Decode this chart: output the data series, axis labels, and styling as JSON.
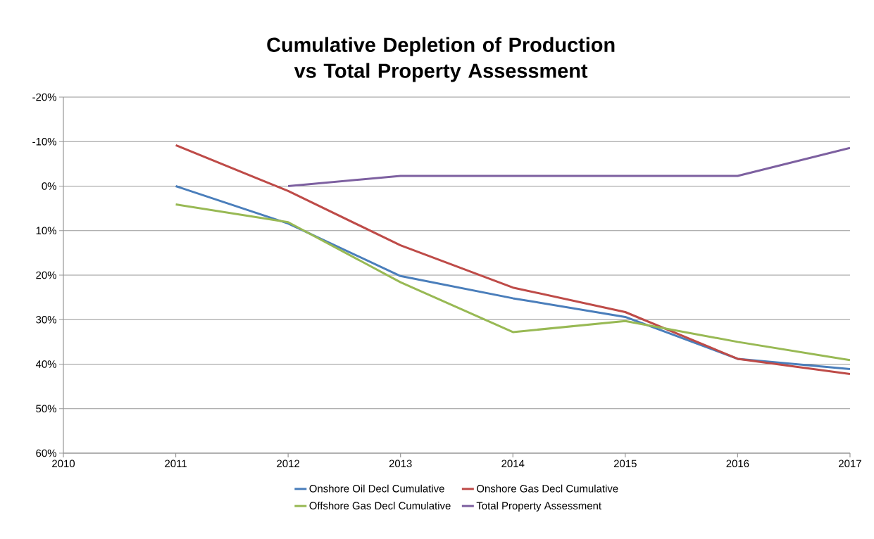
{
  "chart_data": {
    "type": "line",
    "title": "Cumulative Depletion of Production vs Total Property Assessment",
    "x": [
      2011,
      2012,
      2013,
      2014,
      2015,
      2016,
      2017
    ],
    "series": [
      {
        "name": "Onshore  Oil Decl Cumulative",
        "color": "#4a7ebb",
        "values": [
          0,
          8.4,
          20.2,
          25.2,
          29.4,
          38.8,
          41.1
        ]
      },
      {
        "name": "Onshore Gas Decl Cumulative",
        "color": "#be4b48",
        "values": [
          -9.2,
          1.1,
          13.3,
          22.8,
          28.3,
          38.8,
          42.2
        ]
      },
      {
        "name": "Offshore Gas Decl Cumulative",
        "color": "#98b954",
        "values": [
          4.1,
          8.1,
          21.6,
          32.8,
          30.3,
          35.0,
          39.1
        ]
      },
      {
        "name": "Total Property Assessment",
        "color": "#7d60a0",
        "values": [
          null,
          0,
          -2.3,
          -2.3,
          -2.3,
          -2.3,
          -8.6
        ]
      }
    ],
    "xlim": [
      2010,
      2017
    ],
    "xticks": [
      2010,
      2011,
      2012,
      2013,
      2014,
      2015,
      2016,
      2017
    ],
    "ylim": [
      60,
      -20
    ],
    "yticks": [
      {
        "value": -20,
        "label": "-20%"
      },
      {
        "value": -10,
        "label": "-10%"
      },
      {
        "value": 0,
        "label": "0%"
      },
      {
        "value": 10,
        "label": "10%"
      },
      {
        "value": 20,
        "label": "20%"
      },
      {
        "value": 30,
        "label": "30%"
      },
      {
        "value": 40,
        "label": "40%"
      },
      {
        "value": 50,
        "label": "50%"
      },
      {
        "value": 60,
        "label": "60%"
      }
    ],
    "grid": "y",
    "legend": "bottom",
    "marker": "none",
    "line_style": "solid"
  }
}
